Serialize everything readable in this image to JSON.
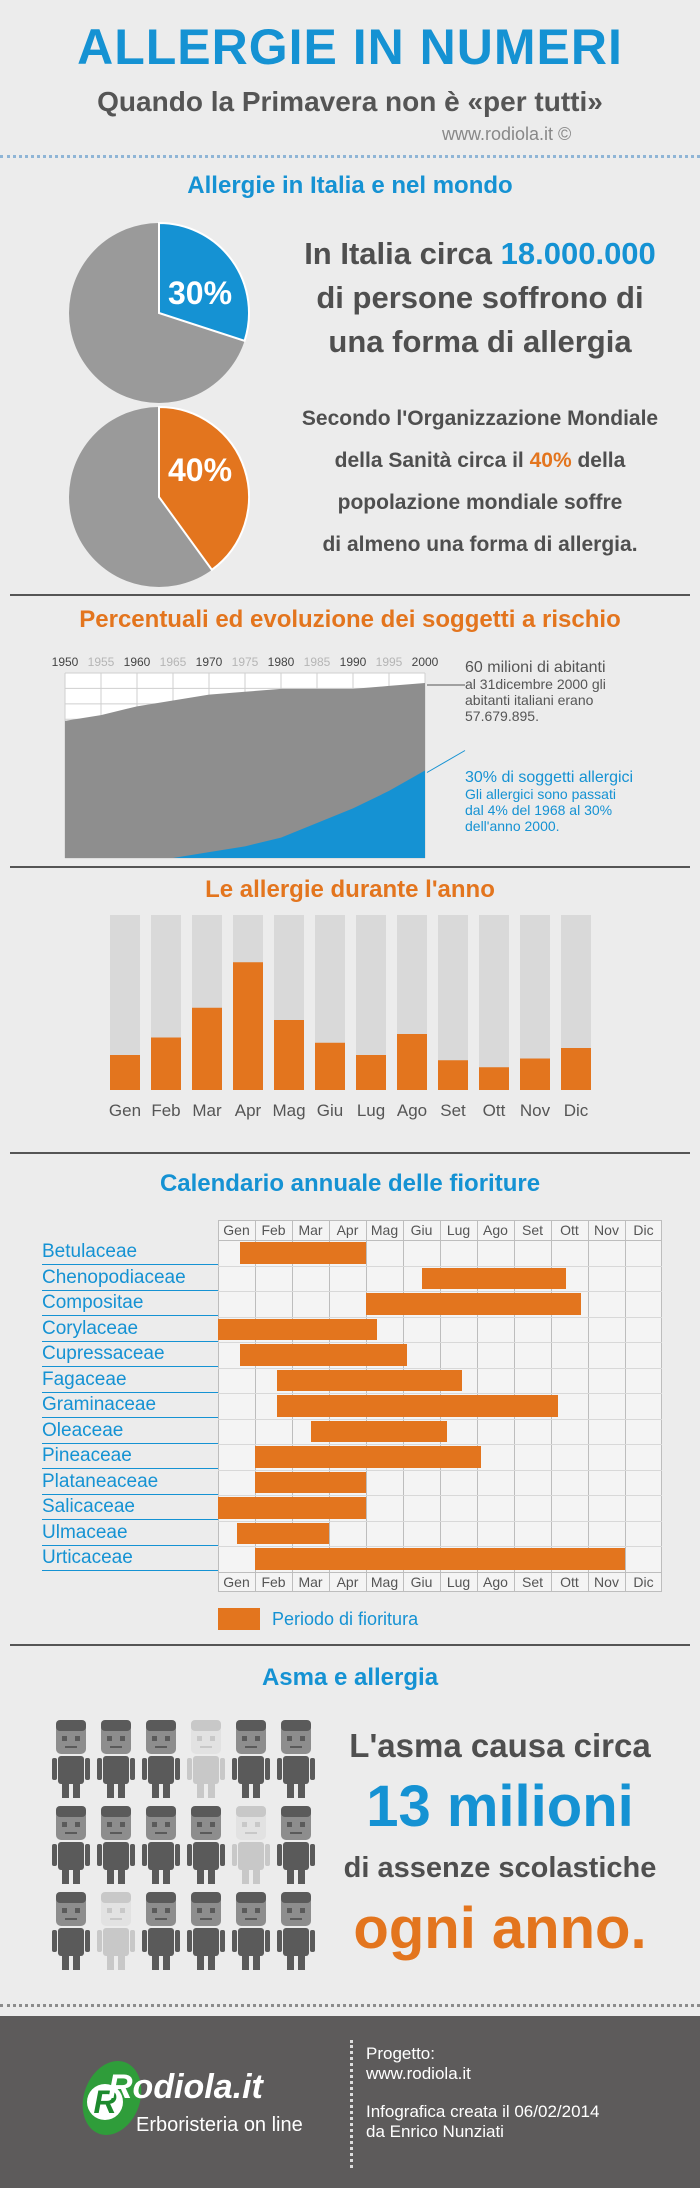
{
  "header": {
    "title": "ALLERGIE IN NUMERI",
    "subtitle": "Quando la Primavera non è «per tutti»",
    "site": "www.rodiola.it ©"
  },
  "colors": {
    "blue": "#1592d3",
    "orange": "#e3751e",
    "gray": "#9a9a9a",
    "dark": "#4f4f4f"
  },
  "section1": {
    "heading": "Allergie in Italia e nel mondo",
    "pie1_label": "30%",
    "pie1_value": 30,
    "pie2_label": "40%",
    "pie2_value": 40,
    "italy": {
      "a": "In Italia circa",
      "b": "18.000.000",
      "c": "di persone soffrono di",
      "d": "una forma di allergia"
    },
    "world": {
      "l1": "Secondo l'Organizzazione Mondiale",
      "l2a": "della Sanità circa il",
      "l2b": "40%",
      "l2c": "della",
      "l3": "popolazione mondiale soffre",
      "l4": "di almeno una forma di allergia."
    }
  },
  "section2": {
    "heading": "Percentuali ed evoluzione dei soggetti a rischio",
    "years": [
      "1950",
      "1955",
      "1960",
      "1965",
      "1970",
      "1975",
      "1980",
      "1985",
      "1990",
      "1995",
      "2000"
    ],
    "note1": {
      "title": "60 milioni di abitanti",
      "l1": "al 31dicembre 2000 gli",
      "l2": "abitanti italiani erano",
      "l3": "57.679.895."
    },
    "note2": {
      "title": "30% di soggetti allergici",
      "l1": "Gli allergici sono passati",
      "l2": "dal 4% del 1968  al 30%",
      "l3": "dell'anno 2000."
    }
  },
  "chart_data": {
    "type": "area",
    "x": [
      1950,
      1955,
      1960,
      1965,
      1970,
      1975,
      1980,
      1985,
      1990,
      1995,
      2000
    ],
    "series": [
      {
        "values": [
          47,
          49,
          52,
          54,
          56,
          57,
          58,
          58,
          58,
          59,
          60
        ]
      },
      {
        "values": [
          0,
          0,
          0,
          0,
          2,
          4,
          7,
          12,
          17,
          23,
          30
        ]
      }
    ],
    "title": "Percentuali ed evoluzione dei soggetti a rischio"
  },
  "section3": {
    "heading": "Le allergie durante l'anno",
    "months": [
      "Gen",
      "Feb",
      "Mar",
      "Apr",
      "Mag",
      "Giu",
      "Lug",
      "Ago",
      "Set",
      "Ott",
      "Nov",
      "Dic"
    ],
    "values": [
      0.2,
      0.3,
      0.47,
      0.73,
      0.4,
      0.27,
      0.2,
      0.32,
      0.17,
      0.13,
      0.18,
      0.24
    ]
  },
  "section4": {
    "heading": "Calendario annuale delle fioriture",
    "months": [
      "Gen",
      "Feb",
      "Mar",
      "Apr",
      "Mag",
      "Giu",
      "Lug",
      "Ago",
      "Set",
      "Ott",
      "Nov",
      "Dic"
    ],
    "legend": "Periodo di fioritura",
    "plants": [
      {
        "name": "Betulaceae",
        "start": 0.6,
        "end": 4.0
      },
      {
        "name": "Chenopodiaceae",
        "start": 5.5,
        "end": 9.4
      },
      {
        "name": "Compositae",
        "start": 4.0,
        "end": 9.8
      },
      {
        "name": "Corylaceae",
        "start": 0.0,
        "end": 4.3
      },
      {
        "name": "Cupressaceae",
        "start": 0.6,
        "end": 5.1
      },
      {
        "name": "Fagaceae",
        "start": 1.6,
        "end": 6.6
      },
      {
        "name": "Graminaceae",
        "start": 1.6,
        "end": 9.2
      },
      {
        "name": "Oleaceae",
        "start": 2.5,
        "end": 6.2
      },
      {
        "name": "Pineaceae",
        "start": 1.0,
        "end": 7.1
      },
      {
        "name": "Plataneaceae",
        "start": 1.0,
        "end": 4.0
      },
      {
        "name": "Salicaceae",
        "start": 0.0,
        "end": 4.0
      },
      {
        "name": "Ulmaceae",
        "start": 0.5,
        "end": 3.0
      },
      {
        "name": "Urticaceae",
        "start": 1.0,
        "end": 11.0
      }
    ]
  },
  "section5": {
    "heading": "Asma e allergia",
    "l1": "L'asma causa circa",
    "l2": "13 milioni",
    "l3": "di assenze scolastiche",
    "l4": "ogni  anno.",
    "figures": [
      [
        1,
        1,
        1,
        0,
        1,
        1
      ],
      [
        1,
        1,
        1,
        1,
        0,
        1
      ],
      [
        1,
        0,
        1,
        1,
        1,
        1
      ]
    ]
  },
  "footer": {
    "logo": "Rodiola.it",
    "tagline": "Erboristeria on line",
    "project_label": "Progetto:",
    "project_url": "www.rodiola.it",
    "credit1": "Infografica creata il 06/02/2014",
    "credit2": "da Enrico Nunziati"
  }
}
